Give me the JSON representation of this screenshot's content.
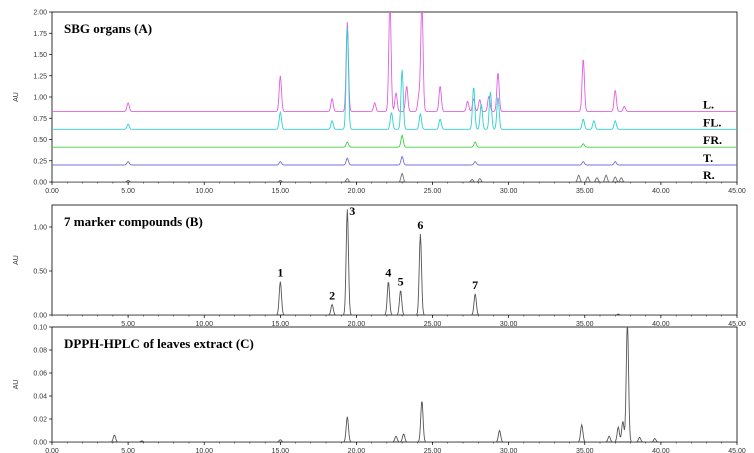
{
  "chart_data": [
    {
      "type": "line",
      "title": "SBG organs (A)",
      "ylabel": "AU",
      "xlabel": "",
      "xlim": [
        0,
        45
      ],
      "ylim": [
        0,
        2.0
      ],
      "x_ticks": [
        "0.00",
        "5.00",
        "10.00",
        "15.00",
        "20.00",
        "25.00",
        "30.00",
        "35.00",
        "40.00",
        "45.00"
      ],
      "y_ticks": [
        "0.00",
        "0.25",
        "0.50",
        "0.75",
        "1.00",
        "1.25",
        "1.50",
        "1.75",
        "2.00"
      ],
      "grid": false,
      "series": [
        {
          "name": "L.",
          "color": "#e060e0",
          "baseline": 0.83,
          "peaks": [
            [
              5.0,
              0.1
            ],
            [
              15.0,
              0.42
            ],
            [
              18.4,
              0.15
            ],
            [
              19.4,
              1.05
            ],
            [
              21.2,
              0.1
            ],
            [
              22.2,
              1.3
            ],
            [
              22.6,
              0.22
            ],
            [
              23.3,
              0.3
            ],
            [
              24.1,
              0.18
            ],
            [
              24.3,
              1.3
            ],
            [
              25.5,
              0.3
            ],
            [
              27.3,
              0.12
            ],
            [
              27.7,
              0.15
            ],
            [
              28.1,
              0.14
            ],
            [
              28.7,
              0.18
            ],
            [
              29.3,
              0.46
            ],
            [
              34.9,
              0.62
            ],
            [
              37.0,
              0.25
            ],
            [
              37.6,
              0.06
            ]
          ]
        },
        {
          "name": "FL.",
          "color": "#30d0d0",
          "baseline": 0.62,
          "peaks": [
            [
              5.0,
              0.06
            ],
            [
              15.0,
              0.2
            ],
            [
              18.4,
              0.1
            ],
            [
              19.4,
              1.2
            ],
            [
              22.3,
              0.2
            ],
            [
              23.0,
              0.7
            ],
            [
              24.2,
              0.18
            ],
            [
              25.5,
              0.12
            ],
            [
              27.7,
              0.5
            ],
            [
              28.2,
              0.3
            ],
            [
              28.8,
              0.44
            ],
            [
              29.3,
              0.38
            ],
            [
              34.9,
              0.12
            ],
            [
              35.6,
              0.1
            ],
            [
              37.0,
              0.1
            ]
          ]
        },
        {
          "name": "FR.",
          "color": "#40d040",
          "baseline": 0.41,
          "peaks": [
            [
              19.4,
              0.06
            ],
            [
              23.0,
              0.14
            ],
            [
              27.8,
              0.06
            ],
            [
              34.9,
              0.04
            ]
          ]
        },
        {
          "name": "T.",
          "color": "#7070d8",
          "baseline": 0.2,
          "peaks": [
            [
              5.0,
              0.04
            ],
            [
              15.0,
              0.04
            ],
            [
              19.4,
              0.08
            ],
            [
              23.0,
              0.1
            ],
            [
              27.8,
              0.04
            ],
            [
              34.9,
              0.04
            ],
            [
              37.0,
              0.04
            ]
          ]
        },
        {
          "name": "R.",
          "color": "#707070",
          "baseline": 0.0,
          "peaks": [
            [
              5.0,
              0.02
            ],
            [
              15.0,
              0.02
            ],
            [
              19.4,
              0.04
            ],
            [
              23.0,
              0.1
            ],
            [
              27.6,
              0.03
            ],
            [
              28.1,
              0.04
            ],
            [
              34.6,
              0.08
            ],
            [
              35.2,
              0.06
            ],
            [
              35.8,
              0.05
            ],
            [
              36.4,
              0.08
            ],
            [
              37.0,
              0.06
            ],
            [
              37.4,
              0.05
            ]
          ]
        }
      ]
    },
    {
      "type": "line",
      "title": "7 marker compounds (B)",
      "ylabel": "AU",
      "xlabel": "",
      "xlim": [
        0,
        45
      ],
      "ylim": [
        0,
        1.25
      ],
      "x_ticks": [
        "5.00",
        "10.00",
        "15.00",
        "20.00",
        "25.00",
        "30.00",
        "35.00",
        "40.00",
        "45.00"
      ],
      "y_ticks": [
        "0.00",
        "0.50",
        "1.00"
      ],
      "grid": false,
      "series": [
        {
          "name": "",
          "color": "#555555",
          "baseline": 0.0,
          "peaks": [
            [
              15.0,
              0.38
            ],
            [
              18.4,
              0.12
            ],
            [
              19.4,
              1.2
            ],
            [
              22.1,
              0.38
            ],
            [
              22.9,
              0.28
            ],
            [
              24.2,
              0.92
            ],
            [
              27.8,
              0.24
            ],
            [
              37.2,
              0.01
            ]
          ]
        }
      ],
      "annotations": [
        {
          "text": "1",
          "x": 15.0
        },
        {
          "text": "2",
          "x": 18.4
        },
        {
          "text": "3",
          "x": 19.4
        },
        {
          "text": "4",
          "x": 22.1
        },
        {
          "text": "5",
          "x": 22.9
        },
        {
          "text": "6",
          "x": 24.2
        },
        {
          "text": "7",
          "x": 27.8
        }
      ]
    },
    {
      "type": "line",
      "title": "DPPH-HPLC of leaves extract (C)",
      "ylabel": "AU",
      "xlabel": "Minutes",
      "xlim": [
        0,
        45
      ],
      "ylim": [
        0,
        0.1
      ],
      "x_ticks": [
        "0.00",
        "5.00",
        "10.00",
        "15.00",
        "20.00",
        "25.00",
        "30.00",
        "35.00",
        "40.00",
        "45.00"
      ],
      "y_ticks": [
        "0.00",
        "0.02",
        "0.04",
        "0.06",
        "0.08",
        "0.10"
      ],
      "grid": false,
      "series": [
        {
          "name": "",
          "color": "#555555",
          "baseline": 0.0,
          "peaks": [
            [
              4.1,
              0.006
            ],
            [
              5.9,
              0.001
            ],
            [
              15.0,
              0.002
            ],
            [
              19.4,
              0.022
            ],
            [
              22.6,
              0.005
            ],
            [
              23.1,
              0.007
            ],
            [
              24.3,
              0.036
            ],
            [
              29.4,
              0.01
            ],
            [
              34.8,
              0.015
            ],
            [
              36.6,
              0.005
            ],
            [
              37.2,
              0.013
            ],
            [
              37.5,
              0.018
            ],
            [
              37.8,
              0.105
            ],
            [
              38.6,
              0.004
            ],
            [
              39.6,
              0.003
            ]
          ]
        }
      ]
    }
  ]
}
